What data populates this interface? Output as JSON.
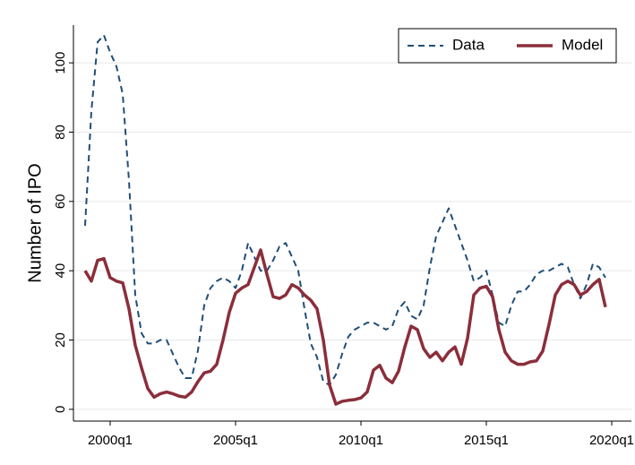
{
  "chart_data": {
    "type": "line",
    "y_label": "Number of IPO",
    "categories": [
      null,
      null,
      null,
      null,
      "2000q1",
      null,
      null,
      null,
      null,
      null,
      null,
      null,
      null,
      null,
      null,
      null,
      null,
      null,
      null,
      null,
      null,
      null,
      null,
      null,
      "2005q1",
      null,
      null,
      null,
      null,
      null,
      null,
      null,
      null,
      null,
      null,
      null,
      null,
      null,
      null,
      null,
      null,
      null,
      null,
      null,
      "2010q1",
      null,
      null,
      null,
      null,
      null,
      null,
      null,
      null,
      null,
      null,
      null,
      null,
      null,
      null,
      null,
      null,
      null,
      null,
      null,
      "2015q1",
      null,
      null,
      null,
      null,
      null,
      null,
      null,
      null,
      null,
      null,
      null,
      null,
      null,
      null,
      null,
      null,
      null,
      null,
      null,
      "2020q1"
    ],
    "series": [
      {
        "name": "Data",
        "color": "#1f4e79",
        "dash": true,
        "values": [
          53,
          86,
          106,
          108,
          103,
          99,
          91,
          66,
          33,
          22,
          19,
          19,
          20,
          20,
          16,
          12,
          9,
          9,
          17,
          30,
          35,
          37,
          38,
          37,
          35,
          40,
          48,
          44,
          40,
          40,
          43,
          47,
          48,
          44,
          40,
          29,
          19,
          15,
          8,
          7,
          10,
          16,
          21,
          23,
          24,
          25,
          25,
          24,
          23,
          24,
          29,
          31,
          27,
          26,
          30,
          41,
          50,
          54,
          58,
          53,
          48,
          43,
          37,
          38,
          40,
          33,
          25,
          24,
          30,
          34,
          34,
          36,
          39,
          40,
          40,
          41,
          42,
          41,
          36,
          32,
          36,
          42,
          41,
          38,
          null
        ]
      },
      {
        "name": "Model",
        "color": "#8b2e3a",
        "dash": false,
        "values": [
          40,
          37,
          43,
          43.5,
          38,
          37,
          36.5,
          29,
          18.5,
          12,
          6,
          3.5,
          4.5,
          5,
          4.5,
          3.8,
          3.5,
          5,
          8,
          10.5,
          11,
          13,
          20,
          28,
          33.5,
          35,
          36,
          41,
          46,
          39,
          32.5,
          32,
          33,
          36,
          35,
          33,
          31.5,
          29,
          20,
          7,
          1.5,
          2.3,
          2.6,
          2.8,
          3.3,
          5,
          11.3,
          12.7,
          9,
          7.7,
          11,
          18,
          24,
          23,
          17.5,
          15,
          16.5,
          14,
          16.5,
          18,
          13,
          20.5,
          33,
          35,
          35.5,
          32.5,
          23,
          16.5,
          14,
          13,
          13,
          13.7,
          14,
          16.8,
          24.5,
          33,
          36,
          37,
          36,
          33,
          34,
          36,
          37.5,
          29.5,
          null
        ]
      }
    ],
    "ylim": [
      -3.4,
      110.9
    ],
    "yticks": [
      0,
      20,
      40,
      60,
      80,
      100
    ],
    "grid": true,
    "legend": "top-right"
  }
}
